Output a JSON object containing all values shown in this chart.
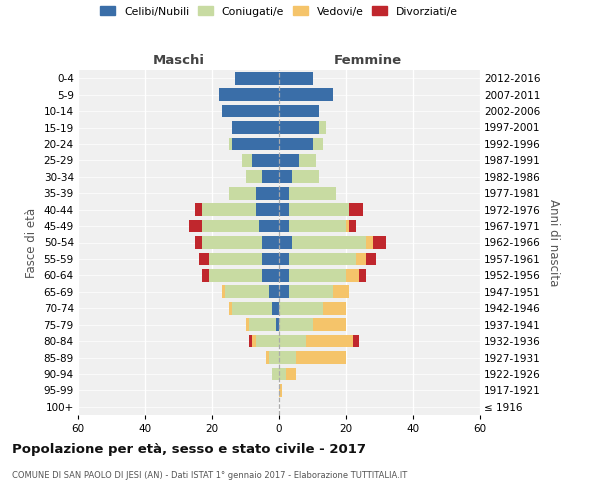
{
  "age_groups": [
    "100+",
    "95-99",
    "90-94",
    "85-89",
    "80-84",
    "75-79",
    "70-74",
    "65-69",
    "60-64",
    "55-59",
    "50-54",
    "45-49",
    "40-44",
    "35-39",
    "30-34",
    "25-29",
    "20-24",
    "15-19",
    "10-14",
    "5-9",
    "0-4"
  ],
  "birth_years": [
    "≤ 1916",
    "1917-1921",
    "1922-1926",
    "1927-1931",
    "1932-1936",
    "1937-1941",
    "1942-1946",
    "1947-1951",
    "1952-1956",
    "1957-1961",
    "1962-1966",
    "1967-1971",
    "1972-1976",
    "1977-1981",
    "1982-1986",
    "1987-1991",
    "1992-1996",
    "1997-2001",
    "2002-2006",
    "2007-2011",
    "2012-2016"
  ],
  "colors": {
    "celibi": "#3a6ea8",
    "coniugati": "#c8dba2",
    "vedovi": "#f5c46a",
    "divorziati": "#c0272d"
  },
  "males": {
    "celibi": [
      0,
      0,
      0,
      0,
      0,
      1,
      2,
      3,
      5,
      5,
      5,
      6,
      7,
      7,
      5,
      8,
      14,
      14,
      17,
      18,
      13
    ],
    "coniugati": [
      0,
      0,
      2,
      3,
      7,
      8,
      12,
      13,
      16,
      16,
      18,
      17,
      16,
      8,
      5,
      3,
      1,
      0,
      0,
      0,
      0
    ],
    "vedovi": [
      0,
      0,
      0,
      1,
      1,
      1,
      1,
      1,
      0,
      0,
      0,
      0,
      0,
      0,
      0,
      0,
      0,
      0,
      0,
      0,
      0
    ],
    "divorziati": [
      0,
      0,
      0,
      0,
      1,
      0,
      0,
      0,
      2,
      3,
      2,
      4,
      2,
      0,
      0,
      0,
      0,
      0,
      0,
      0,
      0
    ]
  },
  "females": {
    "nubili": [
      0,
      0,
      0,
      0,
      0,
      0,
      0,
      3,
      3,
      3,
      4,
      3,
      3,
      3,
      4,
      6,
      10,
      12,
      12,
      16,
      10
    ],
    "coniugate": [
      0,
      0,
      2,
      5,
      8,
      10,
      13,
      13,
      17,
      20,
      22,
      17,
      18,
      14,
      8,
      5,
      3,
      2,
      0,
      0,
      0
    ],
    "vedove": [
      0,
      1,
      3,
      15,
      14,
      10,
      7,
      5,
      4,
      3,
      2,
      1,
      0,
      0,
      0,
      0,
      0,
      0,
      0,
      0,
      0
    ],
    "divorziate": [
      0,
      0,
      0,
      0,
      2,
      0,
      0,
      0,
      2,
      3,
      4,
      2,
      4,
      0,
      0,
      0,
      0,
      0,
      0,
      0,
      0
    ]
  },
  "title": "Popolazione per età, sesso e stato civile - 2017",
  "subtitle": "COMUNE DI SAN PAOLO DI JESI (AN) - Dati ISTAT 1° gennaio 2017 - Elaborazione TUTTITALIA.IT",
  "xlabel_left": "Maschi",
  "xlabel_right": "Femmine",
  "ylabel_left": "Fasce di età",
  "ylabel_right": "Anni di nascita",
  "xlim": 60,
  "bg_color": "#f0f0f0",
  "legend": [
    "Celibi/Nubili",
    "Coniugati/e",
    "Vedovi/e",
    "Divorziati/e"
  ]
}
